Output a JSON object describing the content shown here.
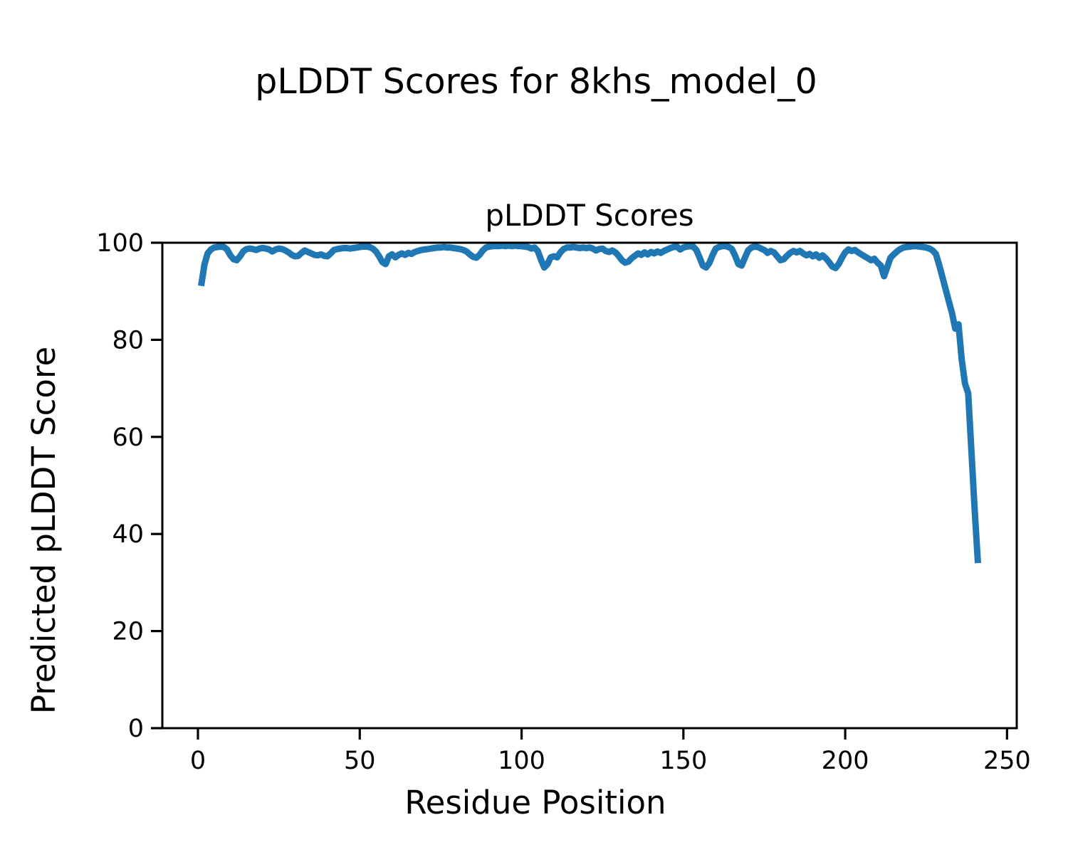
{
  "chart_data": {
    "type": "line",
    "suptitle": "pLDDT Scores for 8khs_model_0",
    "title": "pLDDT Scores",
    "xlabel": "Residue Position",
    "ylabel": "Predicted pLDDT Score",
    "xlim": [
      -11,
      253
    ],
    "ylim": [
      0,
      100
    ],
    "xticks": [
      0,
      50,
      100,
      150,
      200,
      250
    ],
    "yticks": [
      0,
      20,
      40,
      60,
      80,
      100
    ],
    "grid": false,
    "legend": null,
    "line_color": "#1f77b4",
    "line_width": 9,
    "x_start": 1,
    "series_name": "pLDDT",
    "values": [
      91.1,
      95.5,
      97.8,
      98.6,
      99.0,
      99.1,
      99.2,
      99.1,
      98.6,
      97.4,
      96.6,
      96.4,
      97.2,
      98.2,
      98.7,
      98.8,
      98.7,
      98.5,
      98.8,
      98.9,
      98.8,
      98.6,
      98.2,
      98.6,
      98.8,
      98.7,
      98.4,
      98.0,
      97.5,
      97.2,
      97.3,
      97.9,
      98.4,
      98.1,
      97.8,
      97.5,
      97.4,
      97.6,
      97.3,
      97.2,
      97.8,
      98.5,
      98.7,
      98.8,
      98.9,
      98.9,
      98.8,
      98.9,
      99.0,
      99.1,
      99.2,
      99.2,
      99.1,
      98.8,
      98.2,
      97.2,
      96.0,
      95.6,
      97.2,
      97.6,
      97.0,
      97.5,
      97.8,
      97.5,
      97.9,
      97.7,
      98.1,
      98.3,
      98.5,
      98.6,
      98.7,
      98.8,
      98.9,
      99.0,
      99.0,
      99.1,
      99.0,
      99.0,
      98.9,
      98.8,
      98.7,
      98.5,
      98.2,
      97.6,
      97.1,
      96.9,
      97.5,
      98.4,
      99.0,
      99.2,
      99.3,
      99.3,
      99.3,
      99.4,
      99.3,
      99.4,
      99.3,
      99.4,
      99.3,
      99.3,
      99.2,
      99.1,
      98.8,
      99.0,
      98.3,
      96.5,
      94.9,
      95.6,
      97.0,
      97.2,
      97.0,
      98.0,
      98.7,
      99.0,
      99.0,
      99.1,
      99.0,
      98.9,
      99.0,
      98.9,
      99.0,
      98.8,
      98.4,
      98.7,
      98.8,
      98.3,
      98.1,
      98.4,
      98.0,
      97.3,
      96.4,
      95.9,
      96.1,
      96.8,
      97.3,
      97.8,
      97.5,
      98.0,
      97.6,
      98.1,
      97.8,
      98.2,
      97.9,
      98.3,
      98.6,
      98.9,
      99.1,
      99.2,
      98.6,
      99.0,
      99.2,
      99.3,
      99.2,
      98.5,
      97.0,
      95.3,
      94.9,
      95.8,
      97.4,
      98.8,
      99.1,
      99.3,
      99.3,
      99.1,
      98.7,
      97.3,
      95.6,
      95.3,
      96.9,
      98.4,
      99.0,
      99.2,
      99.1,
      98.8,
      98.5,
      97.9,
      98.3,
      98.0,
      97.2,
      96.4,
      96.6,
      97.3,
      97.9,
      98.3,
      98.0,
      98.3,
      97.8,
      97.4,
      97.7,
      97.2,
      97.6,
      96.9,
      97.4,
      96.8,
      96.0,
      95.1,
      94.8,
      95.6,
      96.9,
      98.0,
      98.6,
      98.3,
      98.5,
      98.0,
      97.6,
      97.2,
      96.8,
      96.4,
      96.7,
      95.9,
      95.3,
      93.1,
      95.0,
      96.9,
      97.6,
      98.2,
      98.7,
      99.0,
      99.1,
      99.2,
      99.3,
      99.3,
      99.2,
      99.1,
      99.0,
      98.8,
      98.4,
      97.7,
      95.5,
      93.0,
      90.5,
      88.0,
      85.5,
      82.3,
      83.2,
      76.0,
      71.0,
      69.0,
      57.0,
      45.0,
      34.0
    ]
  }
}
